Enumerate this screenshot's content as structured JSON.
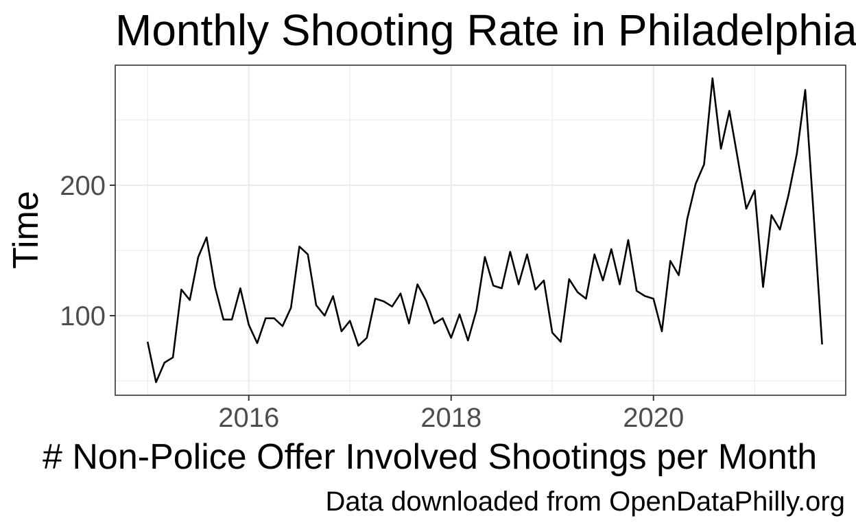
{
  "chart_data": {
    "type": "line",
    "title": "Monthly Shooting Rate in Philadelphia",
    "xlabel": "# Non-Police Offer Involved Shootings per Month",
    "ylabel": "Time",
    "caption": "Data downloaded from OpenDataPhilly.org",
    "x_ticks": [
      {
        "value": 2016,
        "label": "2016"
      },
      {
        "value": 2018,
        "label": "2018"
      },
      {
        "value": 2020,
        "label": "2020"
      }
    ],
    "y_ticks": [
      {
        "value": 100,
        "label": "100"
      },
      {
        "value": 200,
        "label": "200"
      }
    ],
    "x_minor_ticks": [
      2015,
      2017,
      2019,
      2021
    ],
    "y_minor_ticks": [
      50,
      150,
      250
    ],
    "xlim": [
      2014.68,
      2021.9
    ],
    "ylim": [
      39,
      292
    ],
    "grid": true,
    "line_color": "#000000",
    "x": [
      "2015-01",
      "2015-02",
      "2015-03",
      "2015-04",
      "2015-05",
      "2015-06",
      "2015-07",
      "2015-08",
      "2015-09",
      "2015-10",
      "2015-11",
      "2015-12",
      "2016-01",
      "2016-02",
      "2016-03",
      "2016-04",
      "2016-05",
      "2016-06",
      "2016-07",
      "2016-08",
      "2016-09",
      "2016-10",
      "2016-11",
      "2016-12",
      "2017-01",
      "2017-02",
      "2017-03",
      "2017-04",
      "2017-05",
      "2017-06",
      "2017-07",
      "2017-08",
      "2017-09",
      "2017-10",
      "2017-11",
      "2017-12",
      "2018-01",
      "2018-02",
      "2018-03",
      "2018-04",
      "2018-05",
      "2018-06",
      "2018-07",
      "2018-08",
      "2018-09",
      "2018-10",
      "2018-11",
      "2018-12",
      "2019-01",
      "2019-02",
      "2019-03",
      "2019-04",
      "2019-05",
      "2019-06",
      "2019-07",
      "2019-08",
      "2019-09",
      "2019-10",
      "2019-11",
      "2019-12",
      "2020-01",
      "2020-02",
      "2020-03",
      "2020-04",
      "2020-05",
      "2020-06",
      "2020-07",
      "2020-08",
      "2020-09",
      "2020-10",
      "2020-11",
      "2020-12",
      "2021-01",
      "2021-02",
      "2021-03",
      "2021-04",
      "2021-05",
      "2021-06",
      "2021-07",
      "2021-08",
      "2021-09"
    ],
    "y": [
      80,
      49,
      64,
      68,
      120,
      112,
      145,
      160,
      122,
      97,
      97,
      121,
      93,
      79,
      98,
      98,
      92,
      106,
      153,
      147,
      108,
      100,
      115,
      88,
      96,
      77,
      83,
      113,
      111,
      107,
      117,
      94,
      124,
      112,
      94,
      98,
      83,
      101,
      81,
      104,
      145,
      123,
      121,
      149,
      124,
      147,
      120,
      127,
      87,
      80,
      128,
      118,
      113,
      147,
      127,
      151,
      124,
      158,
      119,
      115,
      113,
      88,
      142,
      131,
      174,
      201,
      216,
      282,
      228,
      257,
      220,
      182,
      196,
      122,
      177,
      166,
      192,
      224,
      273,
      177,
      78
    ]
  }
}
